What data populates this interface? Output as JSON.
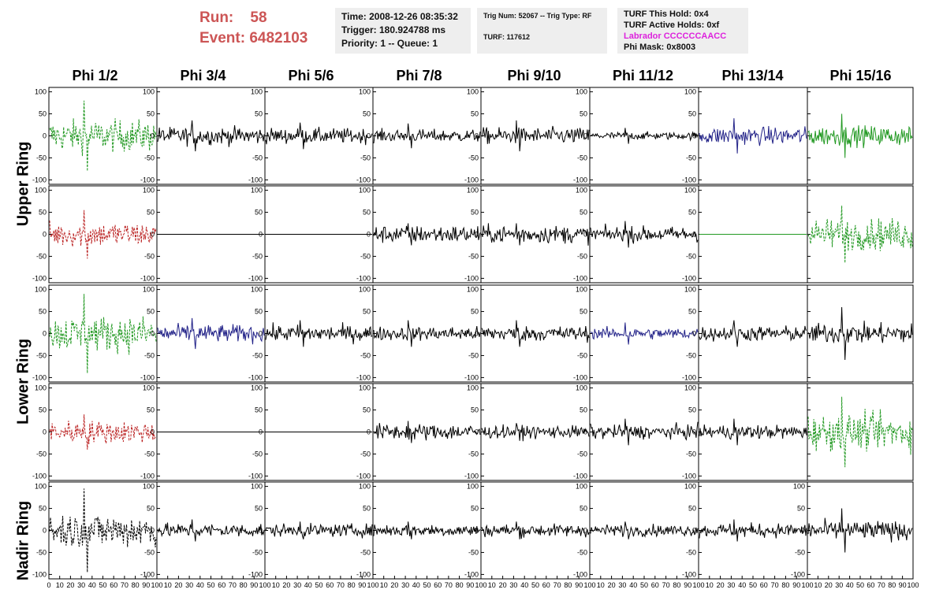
{
  "header": {
    "run_label": "Run:",
    "run_value": "58",
    "event_label": "Event:",
    "event_value": "6482103"
  },
  "info_box_1": {
    "line1": "Time: 2008-12-26 08:35:32",
    "line2": "Trigger: 180.924788 ms",
    "line3": "Priority: 1 -- Queue: 1"
  },
  "info_box_2": {
    "line1": "Trig Num: 52067 -- Trig Type: RF",
    "line2": "TURF: 117612"
  },
  "info_box_3": {
    "line1": "TURF This Hold: 0x4",
    "line2": "TURF Active Holds: 0xf",
    "line3": "Labrador CCCCCCAACC",
    "line4": "Phi Mask: 0x8003"
  },
  "colors": {
    "green": "#229922",
    "red": "#bb2222",
    "blue": "#222288",
    "black": "#000000",
    "run_text": "#cc5555",
    "labrador_text": "#dd22dd"
  },
  "chart_data": {
    "type": "line",
    "columns": [
      "Phi 1/2",
      "Phi 3/4",
      "Phi 5/6",
      "Phi 7/8",
      "Phi 9/10",
      "Phi 11/12",
      "Phi 13/14",
      "Phi 15/16"
    ],
    "row_labels": [
      "Upper Ring",
      "Lower Ring",
      "Nadir Ring"
    ],
    "xlim": [
      0,
      100
    ],
    "ylim": [
      -110,
      110
    ],
    "y_ticks": [
      "100",
      "50",
      "0",
      "-50",
      "-100"
    ],
    "x_ticks": [
      "0",
      "10",
      "20",
      "30",
      "40",
      "50",
      "60",
      "70",
      "80",
      "90",
      "100"
    ],
    "panels": [
      [
        {
          "color": "green",
          "style": "dashed",
          "amp": 25,
          "peak": 80
        },
        {
          "color": "black",
          "style": "solid",
          "amp": 14,
          "peak": 35
        },
        {
          "color": "black",
          "style": "solid",
          "amp": 12,
          "peak": 30
        },
        {
          "color": "black",
          "style": "solid",
          "amp": 10,
          "peak": 28
        },
        {
          "color": "black",
          "style": "solid",
          "amp": 13,
          "peak": 35
        },
        {
          "color": "black",
          "style": "solid",
          "amp": 6,
          "peak": 18
        },
        {
          "color": "blue",
          "style": "solid",
          "amp": 14,
          "peak": 40
        },
        {
          "color": "green",
          "style": "solid",
          "amp": 16,
          "peak": 50
        }
      ],
      [
        {
          "color": "red",
          "style": "dashed",
          "amp": 20,
          "peak": 55
        },
        {
          "color": "black",
          "style": "flat",
          "amp": 0,
          "peak": 0
        },
        {
          "color": "black",
          "style": "flat",
          "amp": 0,
          "peak": 0
        },
        {
          "color": "black",
          "style": "solid",
          "amp": 14,
          "peak": 25
        },
        {
          "color": "black",
          "style": "solid",
          "amp": 14,
          "peak": 25
        },
        {
          "color": "black",
          "style": "solid",
          "amp": 12,
          "peak": 30
        },
        {
          "color": "green",
          "style": "flat",
          "amp": 0,
          "peak": 0
        },
        {
          "color": "green",
          "style": "dashed",
          "amp": 25,
          "peak": 65
        }
      ],
      [
        {
          "color": "green",
          "style": "dashed",
          "amp": 28,
          "peak": 90
        },
        {
          "color": "blue",
          "style": "solid",
          "amp": 14,
          "peak": 35
        },
        {
          "color": "black",
          "style": "solid",
          "amp": 13,
          "peak": 30
        },
        {
          "color": "black",
          "style": "solid",
          "amp": 11,
          "peak": 30
        },
        {
          "color": "black",
          "style": "solid",
          "amp": 12,
          "peak": 30
        },
        {
          "color": "blue",
          "style": "solid",
          "amp": 9,
          "peak": 25
        },
        {
          "color": "black",
          "style": "solid",
          "amp": 12,
          "peak": 30
        },
        {
          "color": "black",
          "style": "solid",
          "amp": 16,
          "peak": 60
        }
      ],
      [
        {
          "color": "red",
          "style": "dashed",
          "amp": 18,
          "peak": 40
        },
        {
          "color": "black",
          "style": "flat",
          "amp": 0,
          "peak": 0
        },
        {
          "color": "black",
          "style": "flat",
          "amp": 0,
          "peak": 0
        },
        {
          "color": "black",
          "style": "solid",
          "amp": 13,
          "peak": 25
        },
        {
          "color": "black",
          "style": "solid",
          "amp": 10,
          "peak": 20
        },
        {
          "color": "black",
          "style": "solid",
          "amp": 11,
          "peak": 30
        },
        {
          "color": "black",
          "style": "solid",
          "amp": 11,
          "peak": 30
        },
        {
          "color": "green",
          "style": "dashed",
          "amp": 28,
          "peak": 80
        }
      ],
      [
        {
          "color": "black",
          "style": "dashed",
          "amp": 28,
          "peak": 95
        },
        {
          "color": "black",
          "style": "solid",
          "amp": 11,
          "peak": 25
        },
        {
          "color": "black",
          "style": "solid",
          "amp": 10,
          "peak": 20
        },
        {
          "color": "black",
          "style": "solid",
          "amp": 10,
          "peak": 20
        },
        {
          "color": "black",
          "style": "solid",
          "amp": 10,
          "peak": 20
        },
        {
          "color": "black",
          "style": "solid",
          "amp": 9,
          "peak": 20
        },
        {
          "color": "black",
          "style": "solid",
          "amp": 11,
          "peak": 25
        },
        {
          "color": "black",
          "style": "solid",
          "amp": 15,
          "peak": 50
        }
      ]
    ]
  }
}
